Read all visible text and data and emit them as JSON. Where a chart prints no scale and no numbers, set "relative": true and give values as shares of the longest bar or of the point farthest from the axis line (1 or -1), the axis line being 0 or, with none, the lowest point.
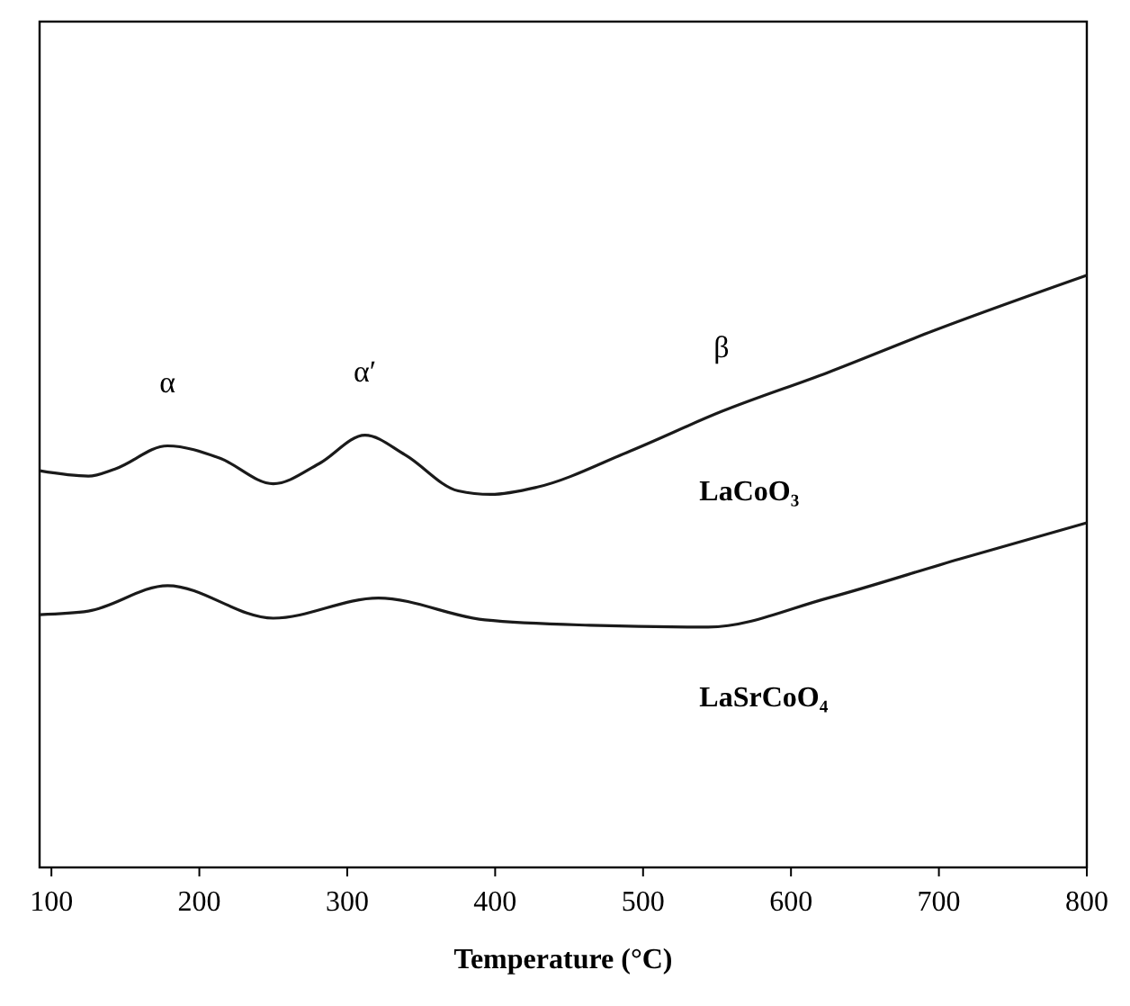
{
  "chart_data": {
    "type": "line",
    "relative": true,
    "xlabel": "Temperature (°C)",
    "xlim": [
      92,
      800
    ],
    "xticks": [
      100,
      200,
      300,
      400,
      500,
      600,
      700,
      800
    ],
    "grid": false,
    "series": [
      {
        "name": "LaCoO₃",
        "color": "#1a1a1a",
        "x": [
          92,
          125,
          143,
          178.5,
          214,
          250,
          281,
          312,
          339,
          375,
          397,
          428,
          491,
          553,
          625,
          696,
          800
        ],
        "values": [
          0.67,
          0.661,
          0.673,
          0.712,
          0.691,
          0.648,
          0.682,
          0.73,
          0.697,
          0.636,
          0.63,
          0.642,
          0.703,
          0.77,
          0.836,
          0.906,
          1.0
        ]
      },
      {
        "name": "LaSrCoO₄",
        "color": "#1a1a1a",
        "x": [
          92,
          125,
          178.5,
          250,
          321,
          393,
          464,
          544,
          625,
          714,
          800
        ],
        "values": [
          0.427,
          0.433,
          0.476,
          0.421,
          0.455,
          0.418,
          0.409,
          0.406,
          0.455,
          0.521,
          0.582
        ]
      }
    ],
    "annotations": [
      {
        "text": "α",
        "x": 178.5,
        "y": 0.712
      },
      {
        "text": "α′",
        "x": 312,
        "y": 0.73
      },
      {
        "text": "β",
        "x": 553,
        "y": 0.77
      }
    ]
  }
}
